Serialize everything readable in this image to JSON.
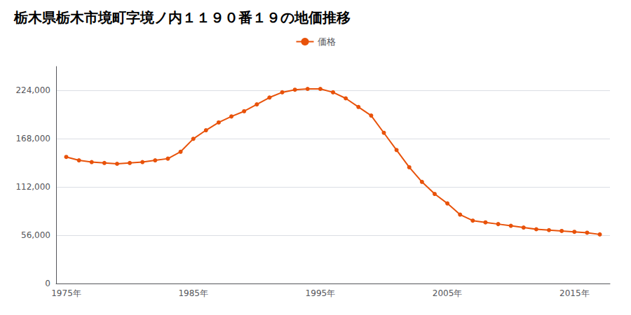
{
  "chart_data": {
    "type": "line",
    "title": "栃木県栃木市境町字境ノ内１１９０番１９の地価推移",
    "x": [
      1975,
      1976,
      1977,
      1978,
      1979,
      1980,
      1981,
      1982,
      1983,
      1984,
      1985,
      1986,
      1987,
      1988,
      1989,
      1990,
      1991,
      1992,
      1993,
      1994,
      1995,
      1996,
      1997,
      1998,
      1999,
      2000,
      2001,
      2002,
      2003,
      2004,
      2005,
      2006,
      2007,
      2008,
      2009,
      2010,
      2011,
      2012,
      2013,
      2014,
      2015,
      2016,
      2017
    ],
    "series": [
      {
        "name": "価格",
        "color": "#e8520a",
        "marker": "circle",
        "values": [
          147000,
          143000,
          141000,
          140000,
          139000,
          140000,
          141000,
          143000,
          145000,
          153000,
          168000,
          178000,
          187000,
          194000,
          200000,
          208000,
          216000,
          222000,
          225000,
          226000,
          226000,
          222000,
          215000,
          205000,
          195000,
          175000,
          155000,
          135000,
          118000,
          104000,
          93000,
          80000,
          73000,
          71000,
          69000,
          67000,
          65000,
          63000,
          62000,
          61000,
          60000,
          59000,
          57000
        ]
      }
    ],
    "xlim": [
      1974.2,
      2017.8
    ],
    "xticks": [
      {
        "value": 1975,
        "label": "1975年"
      },
      {
        "value": 1985,
        "label": "1985年"
      },
      {
        "value": 1995,
        "label": "1995年"
      },
      {
        "value": 2005,
        "label": "2005年"
      },
      {
        "value": 2015,
        "label": "2015年"
      }
    ],
    "ylim": [
      0,
      252000
    ],
    "yticks": [
      0,
      {
        "value": 56000,
        "label": "56,000"
      },
      {
        "value": 112000,
        "label": "112,000"
      },
      {
        "value": 168000,
        "label": "168,000"
      },
      {
        "value": 224000,
        "label": "224,000"
      }
    ],
    "grid": true,
    "legend": "top"
  }
}
